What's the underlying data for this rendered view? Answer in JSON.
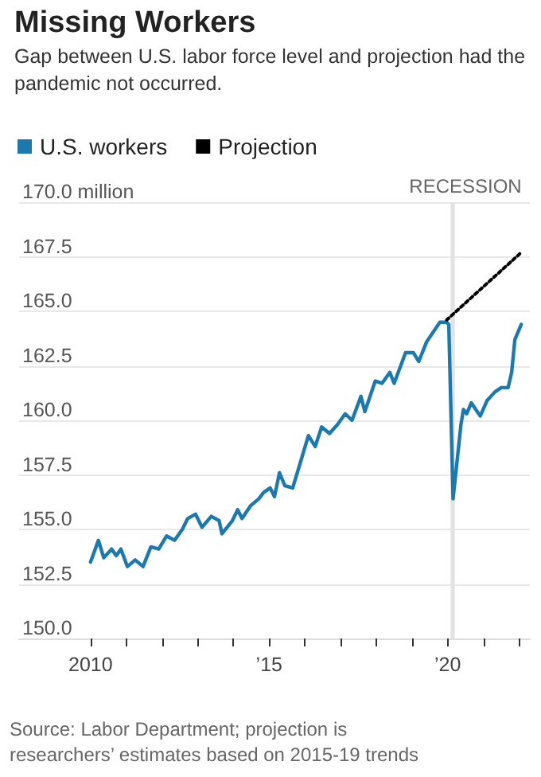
{
  "chart_data": {
    "type": "line",
    "title": "Missing Workers",
    "subtitle": "Gap between U.S. labor force level and projection had the pandemic not occurred.",
    "series": [
      {
        "name": "U.S. workers",
        "color": "#1a7ab0",
        "line_style": "solid",
        "x": [
          2010,
          2010.22,
          2010.37,
          2010.59,
          2010.72,
          2010.85,
          2011.03,
          2011.25,
          2011.47,
          2011.69,
          2011.91,
          2012.13,
          2012.35,
          2012.57,
          2012.72,
          2012.94,
          2013.12,
          2013.38,
          2013.6,
          2013.68,
          2013.97,
          2014.12,
          2014.24,
          2014.49,
          2014.71,
          2014.85,
          2015.03,
          2015.15,
          2015.29,
          2015.44,
          2015.66,
          2015.88,
          2016.1,
          2016.29,
          2016.47,
          2016.69,
          2016.91,
          2017.13,
          2017.32,
          2017.57,
          2017.68,
          2017.97,
          2018.16,
          2018.38,
          2018.5,
          2018.82,
          2019.04,
          2019.19,
          2019.41,
          2019.78,
          2019.97,
          2020.03,
          2020.15,
          2020.37,
          2020.44,
          2020.53,
          2020.66,
          2020.91,
          2021.1,
          2021.32,
          2021.5,
          2021.69,
          2021.79,
          2021.88,
          2022.06
        ],
        "values": [
          153.5,
          154.5,
          153.7,
          154.1,
          153.8,
          154.1,
          153.3,
          153.6,
          153.3,
          154.2,
          154.1,
          154.7,
          154.5,
          155.0,
          155.5,
          155.7,
          155.1,
          155.6,
          155.4,
          154.8,
          155.4,
          155.9,
          155.5,
          156.1,
          156.4,
          156.7,
          156.9,
          156.5,
          157.6,
          157.0,
          156.9,
          158.1,
          159.3,
          158.8,
          159.7,
          159.4,
          159.8,
          160.3,
          160.0,
          161.1,
          160.4,
          161.8,
          161.7,
          162.2,
          161.7,
          163.1,
          163.1,
          162.7,
          163.6,
          164.5,
          164.5,
          164.4,
          156.4,
          159.8,
          160.5,
          160.3,
          160.8,
          160.2,
          160.9,
          161.3,
          161.5,
          161.5,
          162.2,
          163.7,
          164.4
        ]
      },
      {
        "name": "Projection",
        "color": "#000000",
        "line_style": "dotted",
        "x": [
          2019.97,
          2022.06
        ],
        "values": [
          164.6,
          167.7
        ]
      }
    ],
    "xlim": [
      2008,
      2022.3
    ],
    "xticks": [
      {
        "value": 2010,
        "label": "2010"
      },
      {
        "value": 2011,
        "label": null
      },
      {
        "value": 2012,
        "label": null
      },
      {
        "value": 2013,
        "label": null
      },
      {
        "value": 2014,
        "label": null
      },
      {
        "value": 2015,
        "label": "’15"
      },
      {
        "value": 2016,
        "label": null
      },
      {
        "value": 2017,
        "label": null
      },
      {
        "value": 2018,
        "label": null
      },
      {
        "value": 2019,
        "label": null
      },
      {
        "value": 2020,
        "label": "’20"
      },
      {
        "value": 2021,
        "label": null
      },
      {
        "value": 2022,
        "label": null
      }
    ],
    "ylim": [
      150,
      170
    ],
    "yticks": [
      {
        "value": 150,
        "label": "150.0"
      },
      {
        "value": 152.5,
        "label": "152.5"
      },
      {
        "value": 155,
        "label": "155.0"
      },
      {
        "value": 157.5,
        "label": "157.5"
      },
      {
        "value": 160,
        "label": "160.0"
      },
      {
        "value": 162.5,
        "label": "162.5"
      },
      {
        "value": 165,
        "label": "165.0"
      },
      {
        "value": 167.5,
        "label": "167.5"
      },
      {
        "value": 170,
        "label": "170.0 million"
      }
    ],
    "bands": [
      {
        "axis": "x",
        "from": 2020.08,
        "to": 2020.2,
        "label": "RECESSION",
        "color": "#e3e3e3"
      }
    ],
    "grid": "y",
    "legend": "top left",
    "marker": "none",
    "annotations": [
      "Source: Labor Department; projection is researchers’ estimates based on 2015-19 trends"
    ]
  }
}
